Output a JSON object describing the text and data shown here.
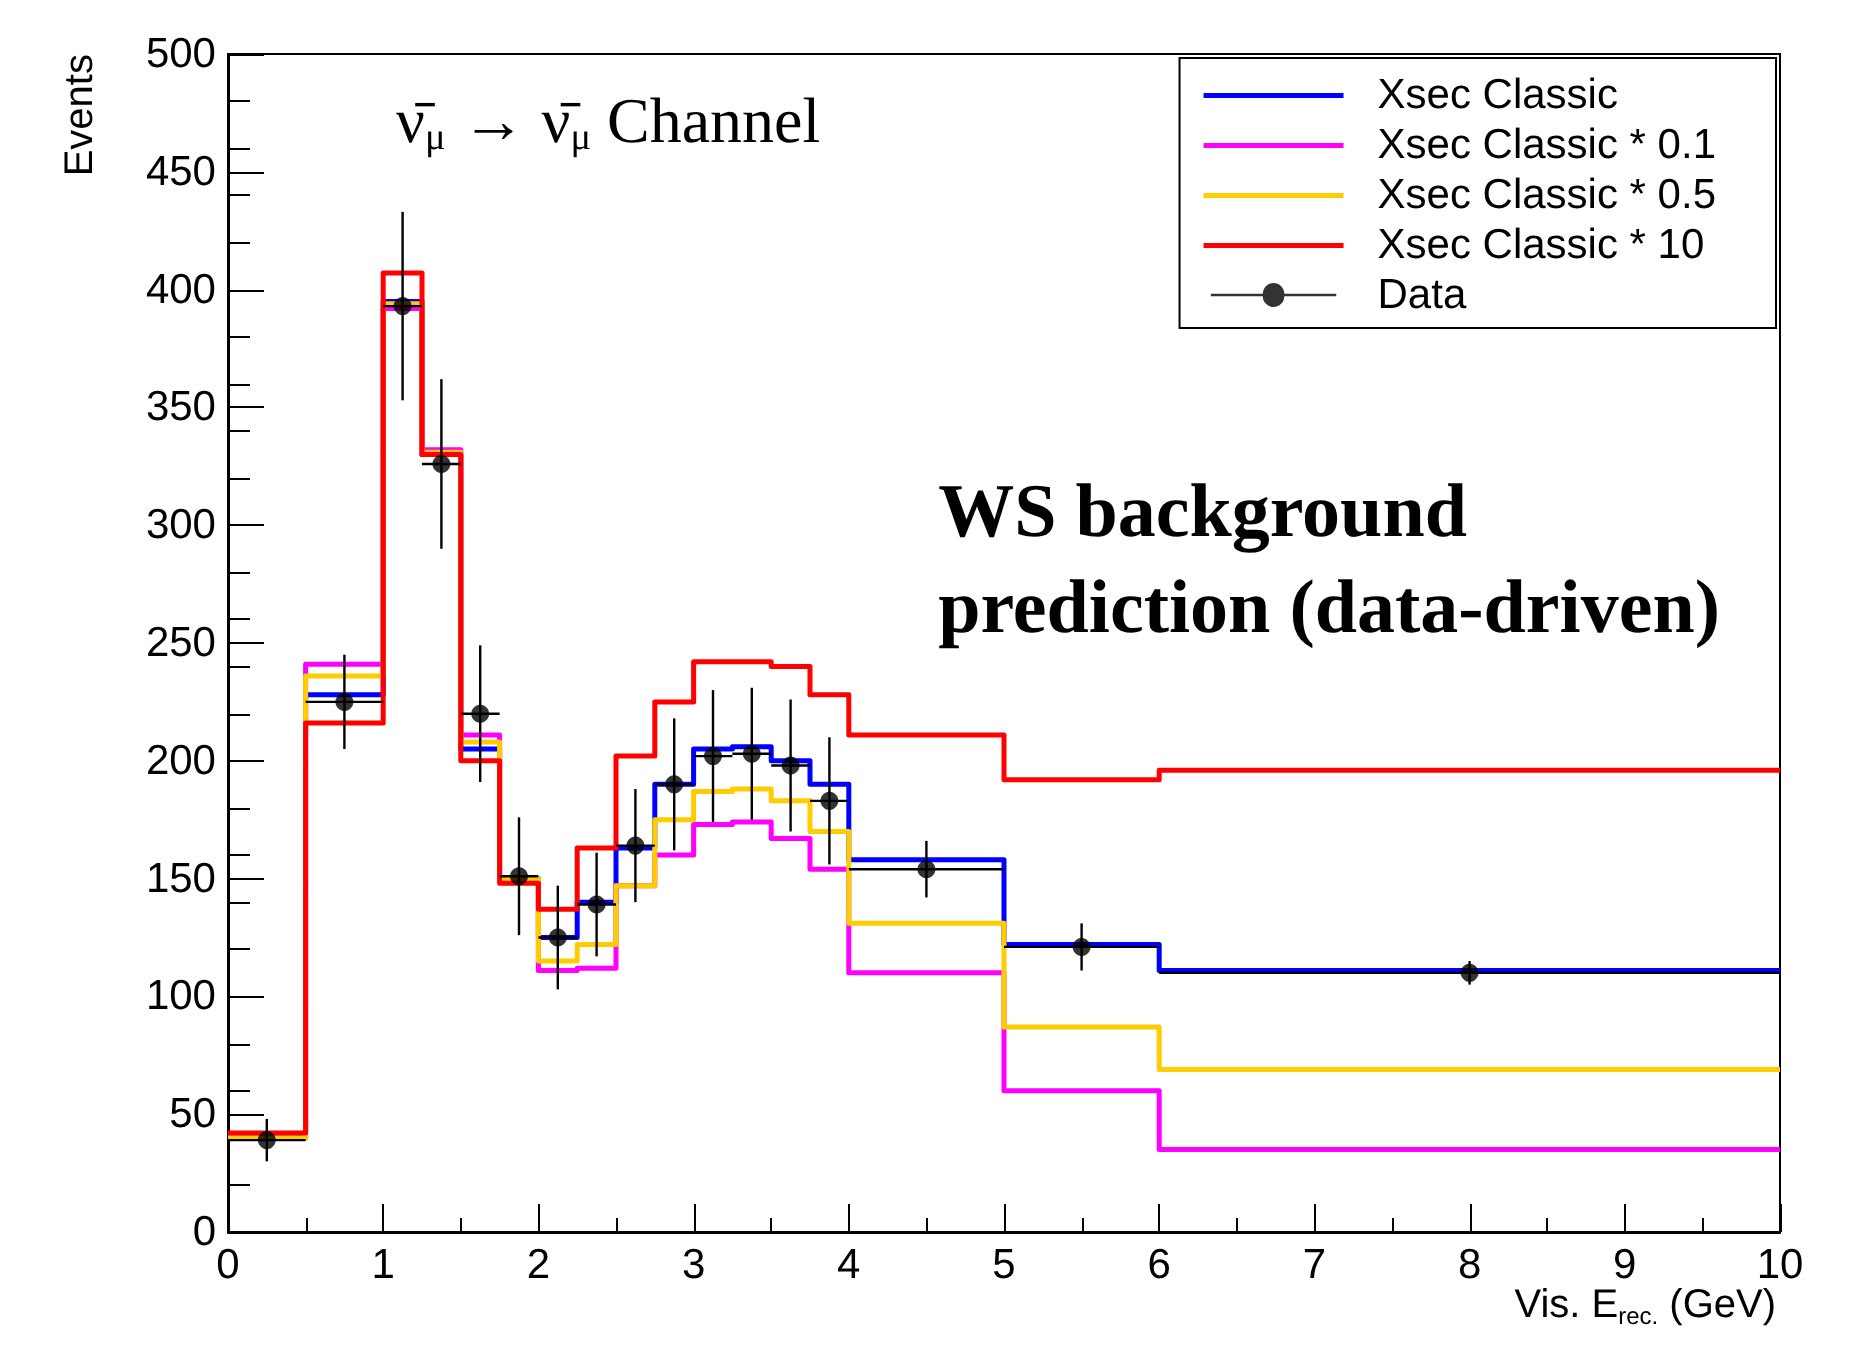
{
  "chart_data": {
    "type": "histogram",
    "xlabel": "Vis. E$_{rec.}$ (GeV)",
    "ylabel": "Events",
    "annotations": [
      "ν̄$_{μ}$ → ν̄$_{μ}$ Channel",
      "WS background prediction (data-driven)"
    ],
    "bins": [
      0,
      0.5,
      1,
      1.25,
      1.5,
      1.75,
      2,
      2.25,
      2.5,
      2.75,
      3,
      3.25,
      3.5,
      3.75,
      4,
      5,
      6,
      10
    ],
    "series": [
      {
        "name": "Xsec Classic",
        "color": "#0000ff",
        "values": [
          40,
          228,
          395,
          330,
          205,
          150,
          125,
          140,
          163,
          190,
          205,
          206,
          200,
          190,
          158,
          122,
          111
        ]
      },
      {
        "name": "Xsec Classic * 0.1",
        "color": "#ff00ff",
        "values": [
          40,
          241,
          392,
          332,
          211,
          150,
          111,
          112,
          147,
          160,
          173,
          174,
          167,
          154,
          110,
          60,
          35
        ]
      },
      {
        "name": "Xsec Classic * 0.5",
        "color": "#ffcc00",
        "values": [
          40,
          236,
          394,
          331,
          208,
          150,
          115,
          122,
          147,
          175,
          187,
          188,
          183,
          170,
          131,
          87,
          69
        ]
      },
      {
        "name": "Xsec Classic * 10",
        "color": "#ff0000",
        "values": [
          42,
          216,
          407,
          330,
          200,
          148,
          137,
          163,
          202,
          225,
          242,
          242,
          240,
          228,
          211,
          192,
          196
        ]
      },
      {
        "name": "Data",
        "type": "scatter",
        "color": "#000000",
        "marker": "circle",
        "x": [
          0.25,
          0.75,
          1.125,
          1.375,
          1.625,
          1.875,
          2.125,
          2.375,
          2.625,
          2.875,
          3.125,
          3.375,
          3.625,
          3.875,
          4.5,
          5.5,
          8
        ],
        "values": [
          39,
          225,
          393,
          326,
          220,
          151,
          125,
          139,
          164,
          190,
          202,
          203,
          198,
          183,
          154,
          121,
          110
        ],
        "errors": [
          9,
          20,
          40,
          36,
          29,
          25,
          22,
          22,
          24,
          28,
          28,
          28,
          28,
          27,
          12,
          10,
          5
        ],
        "xerrors": [
          0.25,
          0.25,
          0.125,
          0.125,
          0.125,
          0.125,
          0.125,
          0.125,
          0.125,
          0.125,
          0.125,
          0.125,
          0.125,
          0.125,
          0.5,
          0.5,
          2
        ]
      }
    ],
    "xlim": [
      0,
      10
    ],
    "xticks": [
      0,
      1,
      2,
      3,
      4,
      5,
      6,
      7,
      8,
      9,
      10
    ],
    "ylim": [
      0,
      500
    ],
    "yticks": [
      0,
      50,
      100,
      150,
      200,
      250,
      300,
      350,
      400,
      450,
      500
    ],
    "grid": false,
    "legend": "top right"
  }
}
